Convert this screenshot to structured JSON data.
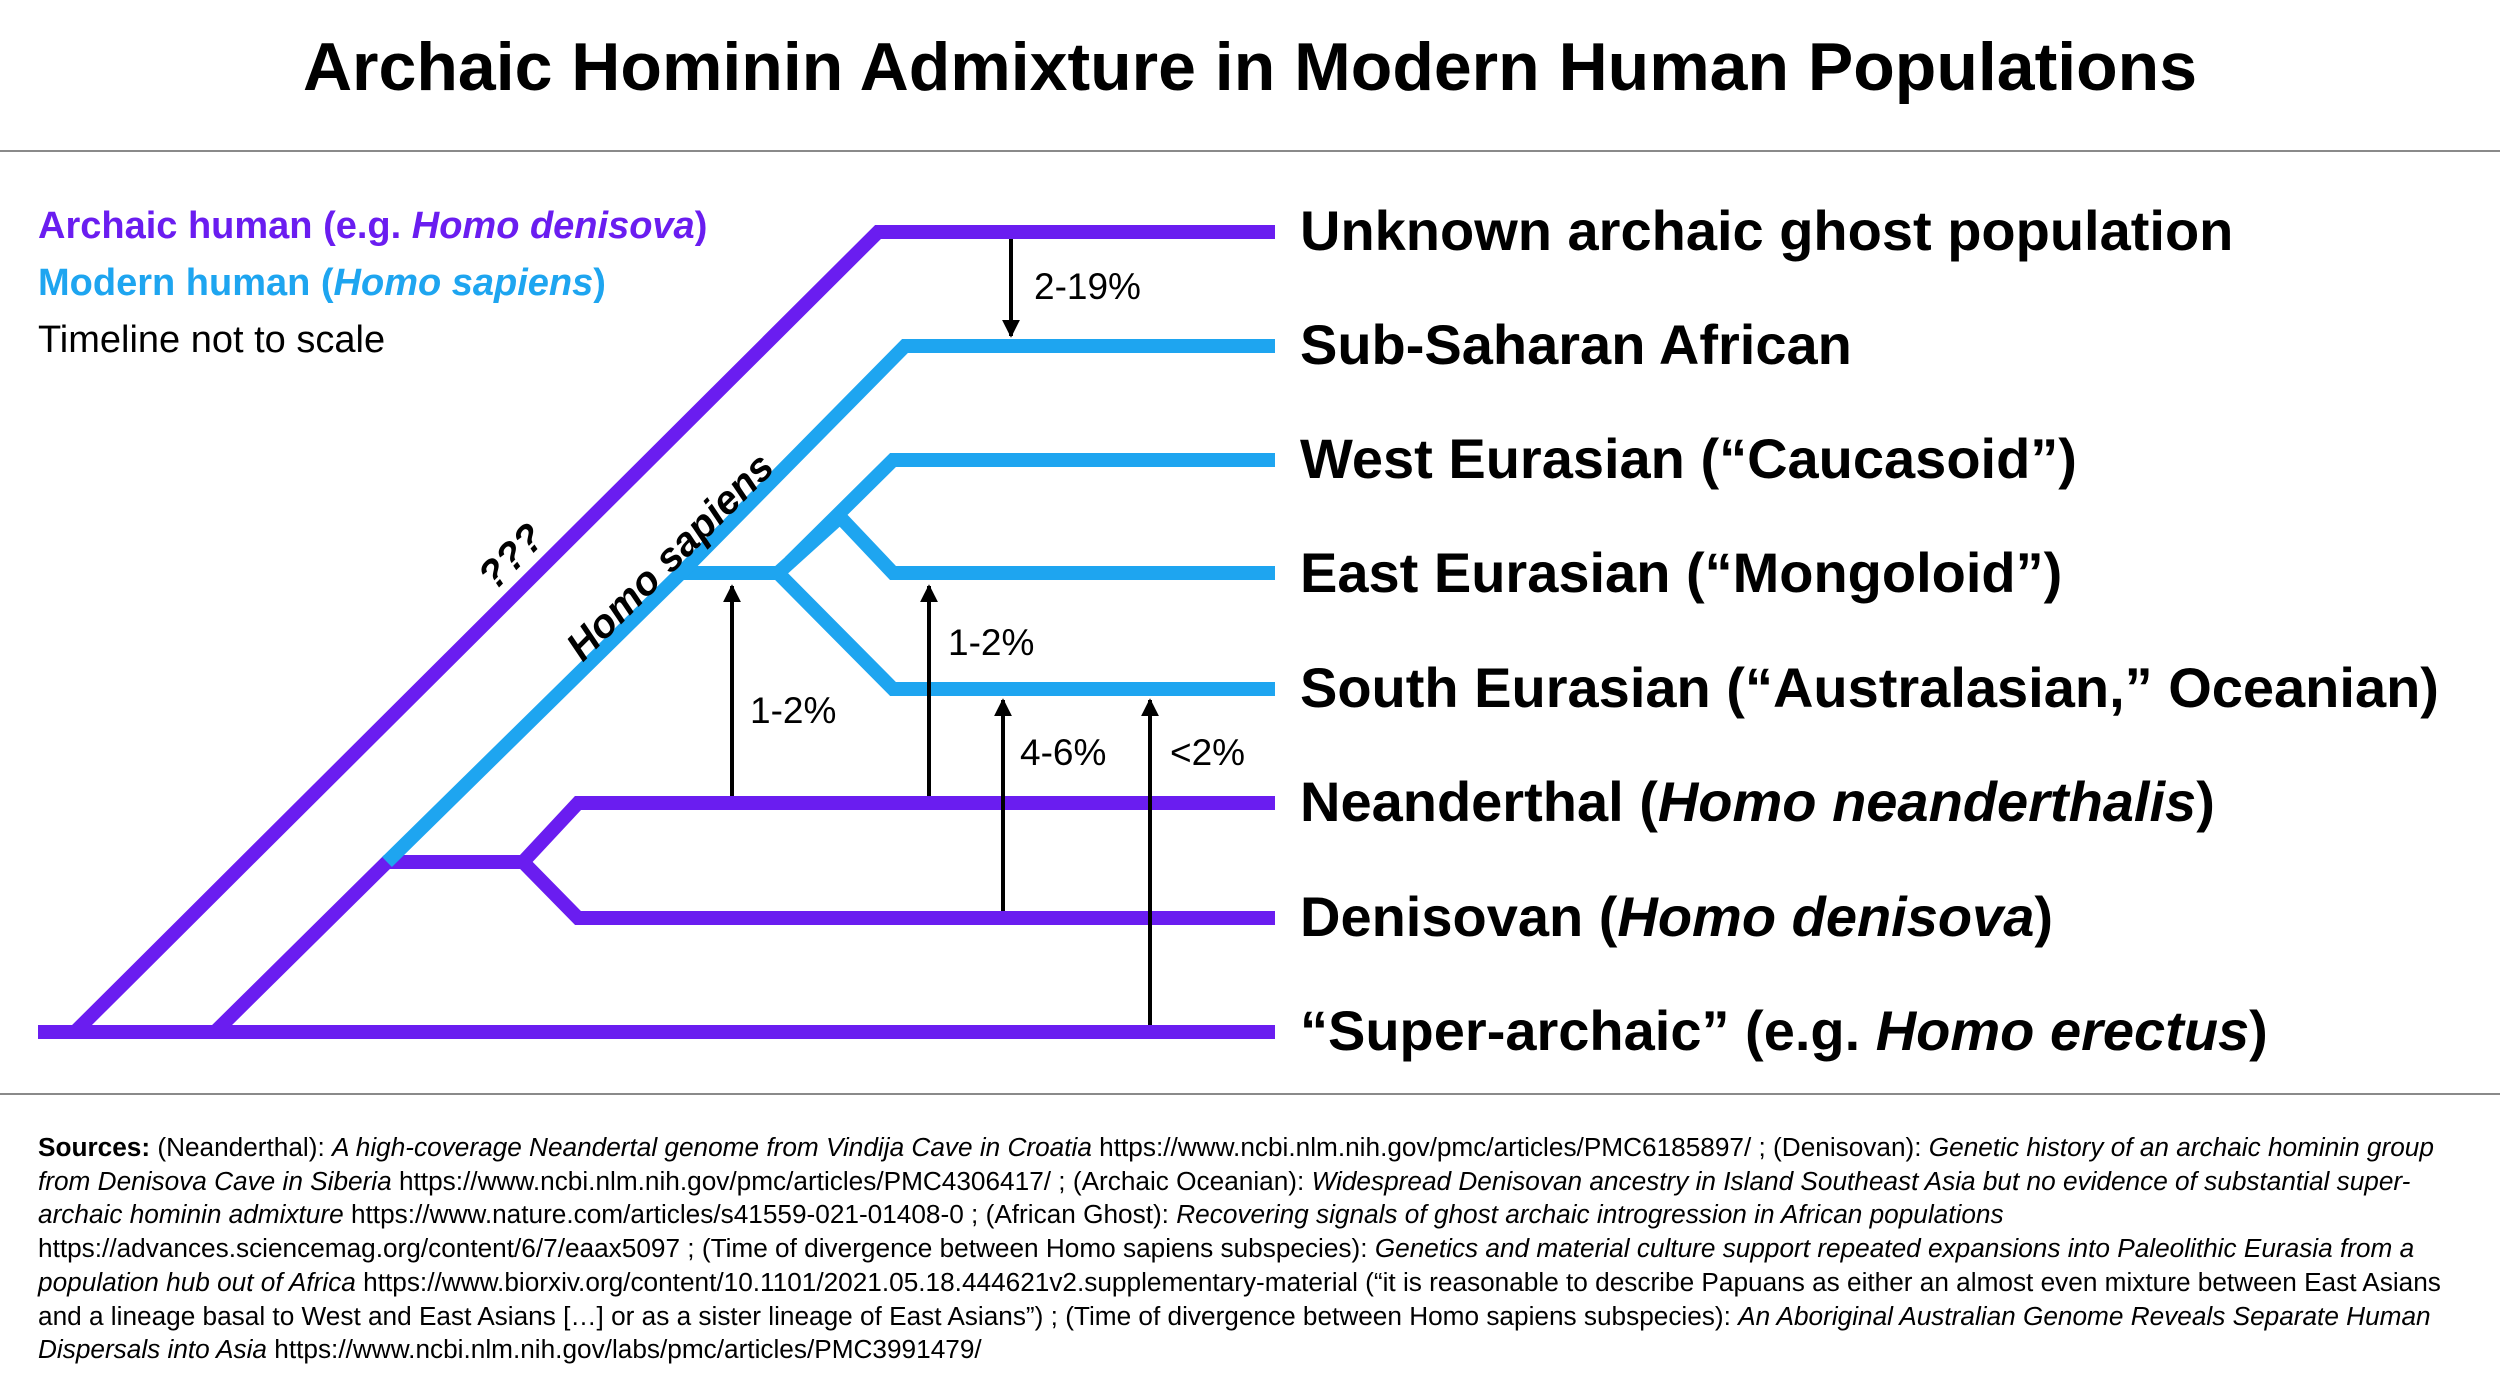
{
  "title": "Archaic Hominin Admixture in Modern Human Populations",
  "colors": {
    "archaic": "#6a1df0",
    "modern": "#1ea5f0",
    "arrow": "#000000"
  },
  "legend": {
    "archaic": {
      "prefix": "Archaic human (e.g. ",
      "italic": "Homo denisova",
      "suffix": ")"
    },
    "modern": {
      "prefix": "Modern human (",
      "italic": "Homo sapiens",
      "suffix": ")"
    },
    "note": "Timeline not to scale"
  },
  "populations": [
    {
      "id": "ghost",
      "prefix": "Unknown archaic ghost population",
      "italic": "",
      "suffix": "",
      "lineage": "archaic"
    },
    {
      "id": "subsaharan",
      "prefix": "Sub-Saharan African",
      "italic": "",
      "suffix": "",
      "lineage": "modern"
    },
    {
      "id": "westeurasian",
      "prefix": "West Eurasian (“Caucasoid”)",
      "italic": "",
      "suffix": "",
      "lineage": "modern"
    },
    {
      "id": "easteurasian",
      "prefix": "East Eurasian (“Mongoloid”)",
      "italic": "",
      "suffix": "",
      "lineage": "modern"
    },
    {
      "id": "southeurasian",
      "prefix": "South Eurasian (“Australasian,” Oceanian)",
      "italic": "",
      "suffix": "",
      "lineage": "modern"
    },
    {
      "id": "neanderthal",
      "prefix": "Neanderthal (",
      "italic": "Homo neanderthalis",
      "suffix": ")",
      "lineage": "archaic"
    },
    {
      "id": "denisovan",
      "prefix": "Denisovan (",
      "italic": "Homo denisova",
      "suffix": ")",
      "lineage": "archaic"
    },
    {
      "id": "superarchaic",
      "prefix": "“Super-archaic” (e.g. ",
      "italic": "Homo erectus",
      "suffix": ")",
      "lineage": "archaic"
    }
  ],
  "branch_labels": {
    "ghost_branch": "???",
    "sapiens_branch": "Homo sapiens"
  },
  "admixture": [
    {
      "from": "Unknown archaic ghost population",
      "to": "Sub-Saharan African",
      "percent": "2-19%"
    },
    {
      "from": "Neanderthal",
      "to": "Homo sapiens (Eurasian ancestor)",
      "percent": "1-2%"
    },
    {
      "from": "Neanderthal",
      "to": "East Eurasian",
      "percent": "1-2%"
    },
    {
      "from": "Denisovan",
      "to": "South Eurasian",
      "percent": "4-6%"
    },
    {
      "from": "“Super-archaic”",
      "to": "South Eurasian",
      "percent": "<2%"
    }
  ],
  "sources": [
    {
      "t": "b",
      "v": "Sources:"
    },
    {
      "t": "r",
      "v": " (Neanderthal): "
    },
    {
      "t": "i",
      "v": "A high-coverage Neandertal genome from Vindija Cave in Croatia"
    },
    {
      "t": "r",
      "v": " https://www.ncbi.nlm.nih.gov/pmc/articles/PMC6185897/ ; (Denisovan): "
    },
    {
      "t": "i",
      "v": "Genetic history of an archaic hominin group from Denisova Cave in Siberia"
    },
    {
      "t": "r",
      "v": " https://www.ncbi.nlm.nih.gov/pmc/articles/PMC4306417/ ; (Archaic Oceanian): "
    },
    {
      "t": "i",
      "v": "Widespread Denisovan ancestry in Island Southeast Asia but no evidence of substantial super-archaic hominin admixture"
    },
    {
      "t": "r",
      "v": " https://www.nature.com/articles/s41559-021-01408-0 ; (African Ghost): "
    },
    {
      "t": "i",
      "v": "Recovering signals of ghost archaic introgression in African populations"
    },
    {
      "t": "r",
      "v": " https://advances.sciencemag.org/content/6/7/eaax5097 ; (Time of divergence between Homo sapiens subspecies): "
    },
    {
      "t": "i",
      "v": "Genetics and material culture support repeated expansions into Paleolithic Eurasia from a population hub out of Africa"
    },
    {
      "t": "r",
      "v": " https://www.biorxiv.org/content/10.1101/2021.05.18.444621v2.supplementary-material (“it is reasonable to describe Papuans as either an almost even mixture between East Asians and a lineage basal to West and East Asians […] or as a sister lineage of East Asians”) ; (Time of divergence between Homo sapiens subspecies): "
    },
    {
      "t": "i",
      "v": "An Aboriginal Australian Genome Reveals Separate Human Dispersals into Asia"
    },
    {
      "t": "r",
      "v": " https://www.ncbi.nlm.nih.gov/labs/pmc/articles/PMC3991479/"
    }
  ]
}
